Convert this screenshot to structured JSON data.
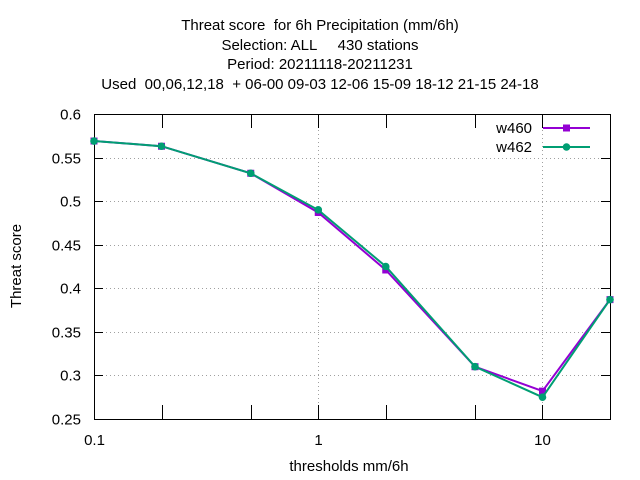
{
  "chart_data": {
    "type": "line",
    "title_lines": [
      "Threat score  for 6h Precipitation (mm/6h)",
      "Selection: ALL     430 stations",
      "Period: 20211118-20211231",
      "Used  00,06,12,18  + 06-00 09-03 12-06 15-09 18-12 21-15 24-18"
    ],
    "xlabel": "thresholds mm/6h",
    "ylabel": "Threat score",
    "x_scale": "log",
    "xlim": [
      0.1,
      20
    ],
    "ylim": [
      0.25,
      0.6
    ],
    "x_tick_labels": [
      "0.1",
      "1",
      "10"
    ],
    "x_ticks_major": [
      0.1,
      1,
      10
    ],
    "x_ticks_minor": [
      0.2,
      0.5,
      2,
      5,
      20
    ],
    "y_ticks": [
      0.25,
      0.3,
      0.35,
      0.4,
      0.45,
      0.5,
      0.55,
      0.6
    ],
    "y_tick_labels": [
      "0.25",
      "0.3",
      "0.35",
      "0.4",
      "0.45",
      "0.5",
      "0.55",
      "0.6"
    ],
    "grid": true,
    "legend_position": "top-right",
    "x": [
      0.1,
      0.2,
      0.5,
      1,
      2,
      5,
      10,
      20
    ],
    "series": [
      {
        "name": "w460",
        "color": "#9400d3",
        "marker": "square",
        "values": [
          0.569,
          0.563,
          0.532,
          0.487,
          0.421,
          0.31,
          0.282,
          0.387
        ]
      },
      {
        "name": "w462",
        "color": "#009e73",
        "marker": "circle",
        "values": [
          0.569,
          0.563,
          0.532,
          0.49,
          0.425,
          0.31,
          0.275,
          0.387
        ]
      }
    ]
  }
}
